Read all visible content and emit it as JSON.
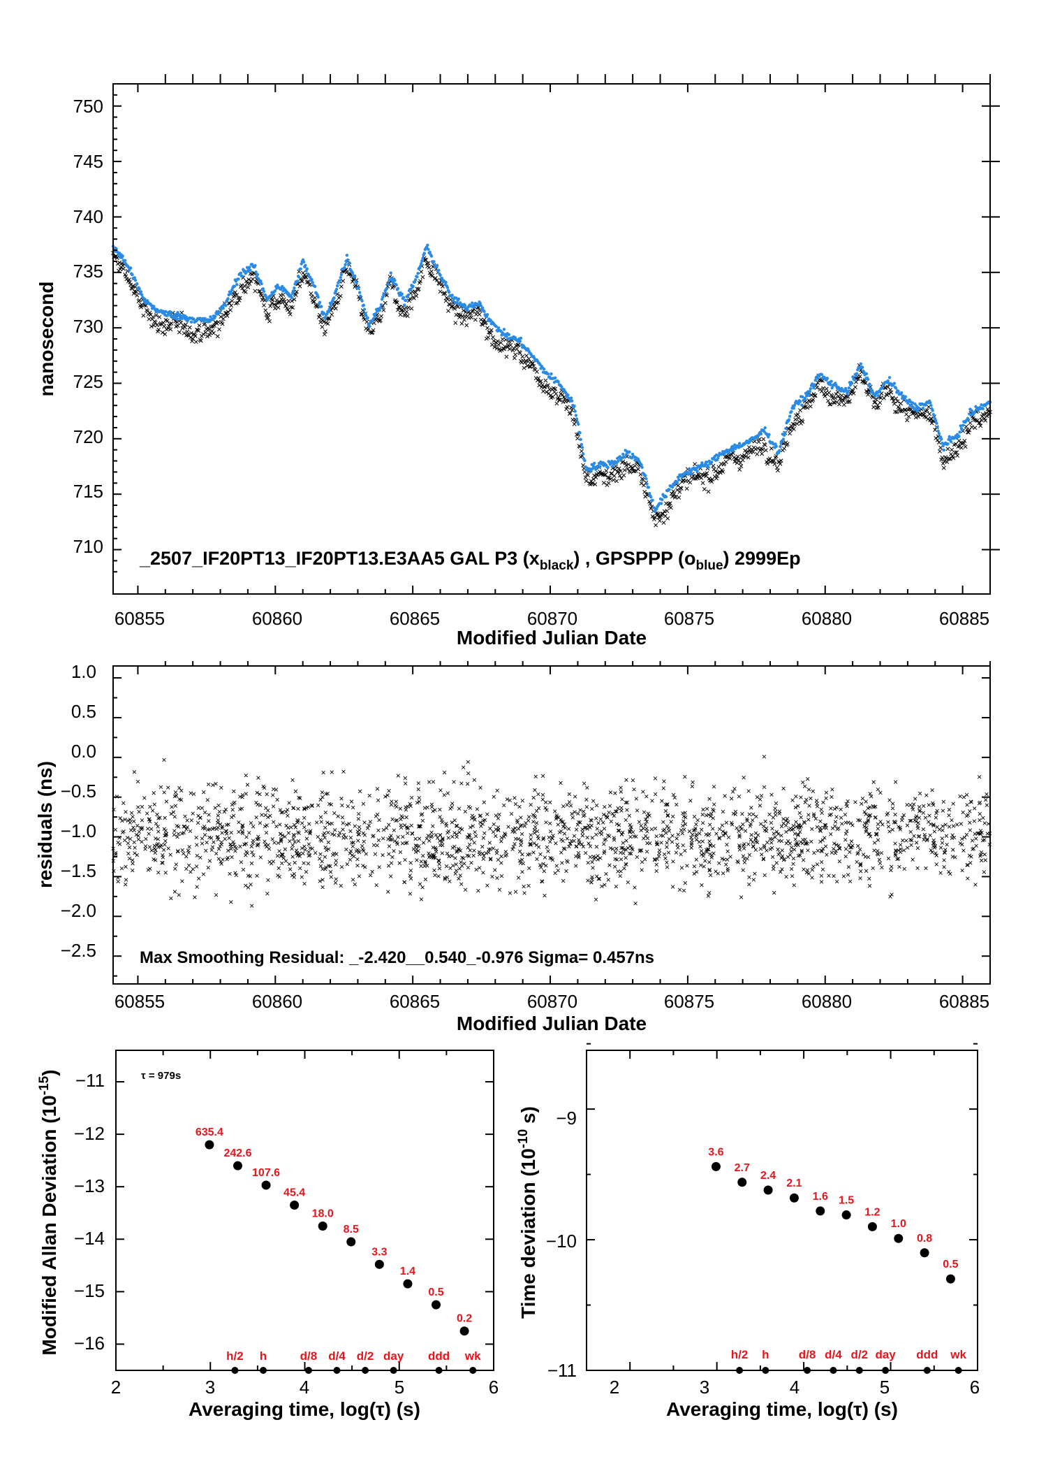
{
  "colors": {
    "axis": "#000000",
    "gps_series": "#2a8be6",
    "gal_series": "#000000",
    "annotation": "#e8141c"
  },
  "chart_data": [
    {
      "id": "clock_comparison",
      "type": "scatter",
      "ylabel": "nanosecond",
      "xlabel": "Modified Julian Date",
      "xlim": [
        60854.1,
        60886.0
      ],
      "ylim": [
        706.0,
        752.0
      ],
      "x_ticks": [
        "60855",
        "60860",
        "60865",
        "60870",
        "60875",
        "60880",
        "60885"
      ],
      "y_ticks": [
        "710",
        "715",
        "720",
        "725",
        "730",
        "735",
        "740",
        "745",
        "750"
      ],
      "annotation": {
        "prefix": "_2507_IF20PT13_IF20PT13.E3AA5    GAL P3 (x",
        "sub1": "black",
        "mid": ") ,  GPSPPP (o",
        "sub2": "blue",
        "suffix": ")  2999Ep"
      },
      "trend_x": [
        60854.1,
        60854.6,
        60855.2,
        60855.8,
        60856.4,
        60857.0,
        60857.6,
        60858.1,
        60858.7,
        60859.2,
        60859.7,
        60860.1,
        60860.6,
        60861.0,
        60861.4,
        60861.8,
        60862.2,
        60862.6,
        60863.0,
        60863.4,
        60863.8,
        60864.2,
        60864.7,
        60865.1,
        60865.5,
        60865.9,
        60866.4,
        60866.9,
        60867.4,
        60867.9,
        60868.4,
        60868.9,
        60869.4,
        60869.9,
        60870.4,
        60870.9,
        60871.3,
        60871.8,
        60872.3,
        60872.8,
        60873.3,
        60873.8,
        60874.3,
        60874.8,
        60875.3,
        60875.8,
        60876.3,
        60876.8,
        60877.3,
        60877.8,
        60878.3,
        60878.8,
        60879.3,
        60879.8,
        60880.3,
        60880.8,
        60881.3,
        60881.8,
        60882.3,
        60882.8,
        60883.3,
        60883.8,
        60884.3,
        60884.8,
        60885.3,
        60886.0
      ],
      "trend_y": [
        736.5,
        735.0,
        731.8,
        730.6,
        730.3,
        730.0,
        729.8,
        731.0,
        734.0,
        734.8,
        731.8,
        733.0,
        732.0,
        735.2,
        733.0,
        730.0,
        732.5,
        735.5,
        733.0,
        729.5,
        731.0,
        734.0,
        731.5,
        733.5,
        736.5,
        734.5,
        732.0,
        731.0,
        731.5,
        729.5,
        728.5,
        728.0,
        726.5,
        725.0,
        724.0,
        722.0,
        716.5,
        716.8,
        717.0,
        718.0,
        717.0,
        712.8,
        714.5,
        716.0,
        716.5,
        717.0,
        718.0,
        718.5,
        719.0,
        720.0,
        718.0,
        722.0,
        723.0,
        725.0,
        724.0,
        723.5,
        725.8,
        723.0,
        724.5,
        723.0,
        722.0,
        722.5,
        718.5,
        719.5,
        721.5,
        722.5
      ],
      "gps_offset_ns": 0.8,
      "gal_offset_ns": -0.2
    },
    {
      "id": "residuals",
      "type": "scatter",
      "ylabel": "residuals (ns)",
      "xlabel": "Modified Julian Date",
      "xlim": [
        60854.1,
        60886.0
      ],
      "ylim": [
        -2.85,
        1.15
      ],
      "x_ticks": [
        "60855",
        "60860",
        "60865",
        "60870",
        "60875",
        "60880",
        "60885"
      ],
      "y_ticks": [
        "−2.5",
        "−2.0",
        "−1.5",
        "−1.0",
        "−0.5",
        "0.0",
        "0.5",
        "1.0"
      ],
      "annotation": "Max Smoothing Residual: _-2.420__0.540_-0.976  Sigma= 0.457ns",
      "residual_min": -2.42,
      "residual_max": 0.54,
      "residual_mean": -0.976,
      "sigma": 0.457
    },
    {
      "id": "mdev",
      "type": "scatter",
      "ylabel": "Modified Allan Deviation (10",
      "ylabel_exp": "-15",
      "ylabel_tail": ")",
      "xlabel": "Averaging time, log(τ) (s)",
      "xlim": [
        2,
        6
      ],
      "ylim": [
        -16.5,
        -10.4
      ],
      "x_ticks": [
        "2",
        "3",
        "4",
        "5",
        "6"
      ],
      "y_ticks": [
        "−11",
        "−12",
        "−13",
        "−14",
        "−15",
        "−16"
      ],
      "tau_label": "τ = 979s",
      "x": [
        2.99,
        3.29,
        3.59,
        3.89,
        4.19,
        4.49,
        4.79,
        5.09,
        5.39,
        5.69
      ],
      "y": [
        -12.2,
        -12.6,
        -12.97,
        -13.35,
        -13.75,
        -14.05,
        -14.48,
        -14.85,
        -15.25,
        -15.75
      ],
      "labels": [
        "635.4",
        "242.6",
        "107.6",
        "45.4",
        "18.0",
        "8.5",
        "3.3",
        "1.4",
        "0.5",
        "0.2"
      ],
      "markers_x": [
        3.26,
        3.56,
        4.04,
        4.34,
        4.64,
        4.94,
        5.42,
        5.78
      ],
      "markers_text": [
        "h/2",
        "h",
        "d/8",
        "d/4",
        "d/2",
        "day",
        "ddd",
        "wk"
      ]
    },
    {
      "id": "tdev",
      "type": "scatter",
      "ylabel": "Time deviation (10",
      "ylabel_exp": "-10",
      "ylabel_tail": " s)",
      "xlabel": "Averaging time, log(τ) (s)",
      "xlim": [
        1.5,
        6.0
      ],
      "ylim": [
        -11.0,
        -8.55
      ],
      "x_ticks": [
        "2",
        "3",
        "4",
        "5",
        "6"
      ],
      "y_ticks": [
        "−9",
        "−10",
        "−11"
      ],
      "x": [
        2.99,
        3.29,
        3.59,
        3.89,
        4.19,
        4.49,
        4.79,
        5.09,
        5.39,
        5.69
      ],
      "y": [
        -9.44,
        -9.56,
        -9.62,
        -9.68,
        -9.78,
        -9.81,
        -9.9,
        -9.99,
        -10.1,
        -10.3
      ],
      "labels": [
        "3.6",
        "2.7",
        "2.4",
        "2.1",
        "1.6",
        "1.5",
        "1.2",
        "1.0",
        "0.8",
        "0.5"
      ],
      "markers_x": [
        3.26,
        3.56,
        4.04,
        4.34,
        4.64,
        4.94,
        5.42,
        5.78
      ],
      "markers_text": [
        "h/2",
        "h",
        "d/8",
        "d/4",
        "d/2",
        "day",
        "ddd",
        "wk"
      ]
    }
  ]
}
